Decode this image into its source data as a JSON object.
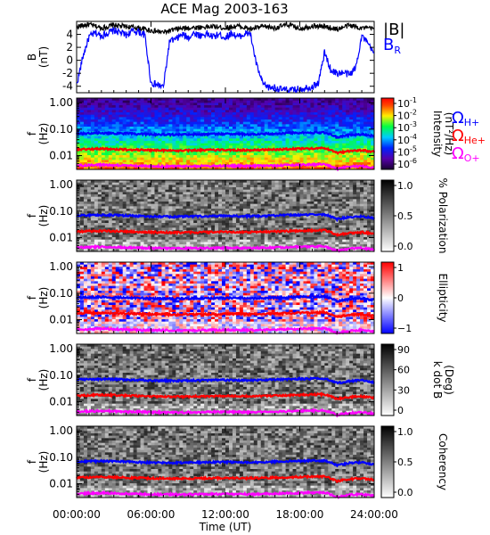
{
  "title": "ACE Mag 2003-163",
  "xlabel": "Time (UT)",
  "x_ticks": [
    "00:00:00",
    "06:00:00",
    "12:00:00",
    "18:00:00",
    "24:00:00"
  ],
  "panel1": {
    "ylabel": "B",
    "yunit": "(nT)",
    "y_ticks": [
      "4",
      "2",
      "0",
      "-2",
      "-4"
    ],
    "legend_B": "|B|",
    "legend_BR_main": "B",
    "legend_BR_sub": "R"
  },
  "spec_freq_ticks": [
    "1.00",
    "0.10",
    "0.01"
  ],
  "spec_ylabel": "f",
  "spec_yunit": "(Hz)",
  "panels": [
    {
      "cb_ticks": [
        "10",
        "10",
        "10",
        "10",
        "10",
        "10"
      ],
      "cb_exps": [
        "-1",
        "-2",
        "-3",
        "-4",
        "-5",
        "-6"
      ],
      "cb_label": "Intensity",
      "cb_label2": "(nT²/Hz)"
    },
    {
      "cb_ticks": [
        "1.0",
        "0.5",
        "0.0"
      ],
      "cb_label": "% Polarization"
    },
    {
      "cb_ticks": [
        "1",
        "0",
        "−1"
      ],
      "cb_label": "Ellipticity"
    },
    {
      "cb_ticks": [
        "90",
        "60",
        "30",
        "0"
      ],
      "cb_label": "k dot B",
      "cb_label2": "(Deg)"
    },
    {
      "cb_ticks": [
        "1.0",
        "0.5",
        "0.0"
      ],
      "cb_label": "Coherency"
    }
  ],
  "gyro_legend": [
    {
      "main": "Ω",
      "sub": "H+",
      "color": "#0000ff"
    },
    {
      "main": "Ω",
      "sub": "He+",
      "color": "#ff0000"
    },
    {
      "main": "Ω",
      "sub": "O+",
      "color": "#ff00ff"
    }
  ],
  "chart_data": {
    "type": "line",
    "x_range_hours": [
      0,
      24
    ],
    "panel1_series": [
      {
        "name": "|B|",
        "color": "#000000",
        "x": [
          0,
          1,
          2,
          3,
          4,
          5,
          6,
          7,
          8,
          9,
          10,
          11,
          12,
          13,
          14,
          15,
          16,
          17,
          18,
          19,
          20,
          21,
          22,
          23,
          24
        ],
        "values": [
          5.2,
          5.5,
          5.0,
          5.4,
          5.2,
          5.0,
          4.6,
          4.3,
          4.8,
          5.0,
          5.1,
          5.2,
          5.0,
          5.3,
          4.8,
          5.2,
          5.0,
          5.5,
          4.9,
          5.3,
          5.2,
          4.8,
          5.4,
          5.0,
          4.9
        ]
      },
      {
        "name": "B_R",
        "color": "#0000ff",
        "x": [
          0,
          0.5,
          1,
          1.5,
          2,
          2.5,
          3,
          3.5,
          4,
          4.5,
          5,
          5.5,
          6,
          6.5,
          7,
          7.5,
          8,
          8.5,
          9,
          9.5,
          10,
          10.5,
          11,
          11.5,
          12,
          12.5,
          13,
          13.5,
          14,
          14.5,
          15,
          15.5,
          16,
          16.5,
          17,
          17.5,
          18,
          18.5,
          19,
          19.5,
          20,
          20.5,
          21,
          21.5,
          22,
          22.5,
          23,
          23.5,
          24
        ],
        "values": [
          -3.8,
          0.5,
          3.6,
          4.2,
          3.8,
          4.2,
          4.6,
          4.3,
          3.9,
          4.5,
          4.4,
          3.9,
          -3.5,
          -3.8,
          -4.1,
          3.0,
          3.2,
          4.0,
          3.5,
          4.2,
          3.8,
          4.1,
          3.6,
          4.0,
          3.5,
          4.2,
          3.6,
          4.0,
          4.2,
          -0.6,
          -3.6,
          -4.2,
          -4.2,
          -4.5,
          -4.6,
          -4.6,
          -4.4,
          -4.2,
          -4.1,
          -3.5,
          1.2,
          -1.5,
          -2.0,
          -1.9,
          -2.2,
          -1.2,
          3.8,
          2.5,
          1.0
        ]
      }
    ],
    "panel1_ylim": [
      -5,
      6
    ],
    "freq_range_hz": [
      0.003,
      1.5
    ],
    "gyrofrequency_lines": [
      {
        "name": "ΩH+",
        "color": "#0000ff",
        "x": [
          0,
          2,
          4,
          6,
          8,
          10,
          12,
          14,
          16,
          18,
          20,
          21,
          22,
          23,
          24
        ],
        "values_hz": [
          0.068,
          0.072,
          0.068,
          0.063,
          0.062,
          0.064,
          0.066,
          0.064,
          0.068,
          0.073,
          0.075,
          0.05,
          0.06,
          0.064,
          0.055
        ]
      },
      {
        "name": "ΩHe+",
        "color": "#ff0000",
        "x": [
          0,
          2,
          4,
          6,
          8,
          10,
          12,
          14,
          16,
          18,
          20,
          21,
          22,
          23,
          24
        ],
        "values_hz": [
          0.017,
          0.018,
          0.017,
          0.016,
          0.0155,
          0.016,
          0.0165,
          0.016,
          0.017,
          0.018,
          0.019,
          0.0125,
          0.015,
          0.016,
          0.014
        ]
      },
      {
        "name": "ΩO+",
        "color": "#ff00ff",
        "x": [
          0,
          2,
          4,
          6,
          8,
          10,
          12,
          14,
          16,
          18,
          20,
          21,
          22,
          23,
          24
        ],
        "values_hz": [
          0.0042,
          0.0045,
          0.0042,
          0.004,
          0.0039,
          0.004,
          0.0041,
          0.004,
          0.0042,
          0.0045,
          0.0047,
          0.0031,
          0.0038,
          0.004,
          0.0035
        ]
      }
    ],
    "colorscales": [
      "rainbow",
      "gray",
      "blue-white-red",
      "gray",
      "gray"
    ],
    "colorbar_ranges": [
      [
        -6,
        -1
      ],
      [
        0,
        1
      ],
      [
        -1,
        1
      ],
      [
        0,
        90
      ],
      [
        0,
        1
      ]
    ]
  }
}
